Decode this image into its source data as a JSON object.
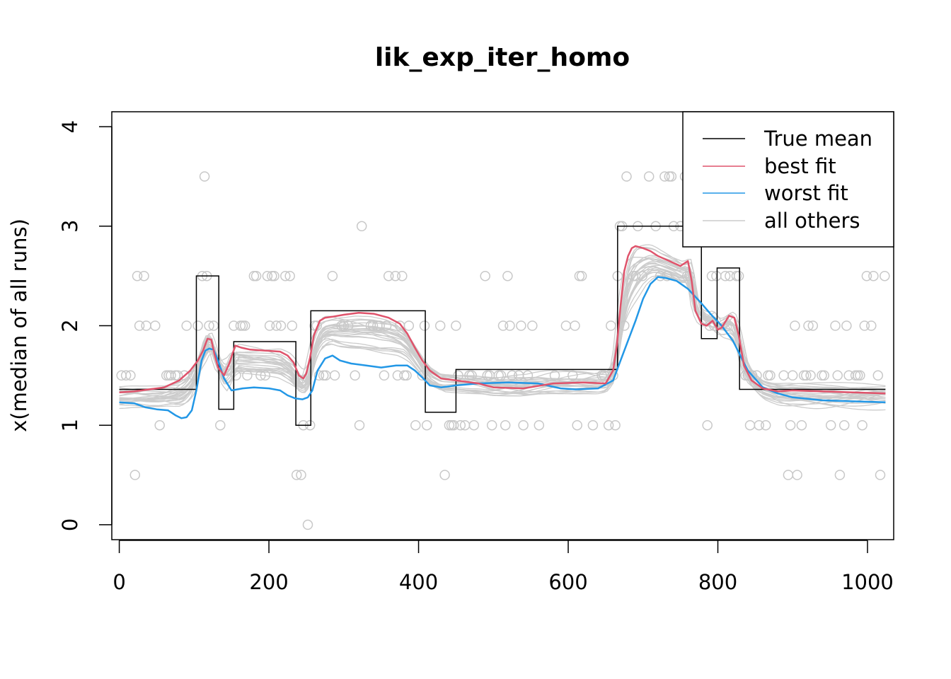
{
  "chart_data": {
    "type": "line",
    "title": "lik_exp_iter_homo",
    "xlabel": "",
    "ylabel": "x(median of all runs)",
    "xlim": [
      -10,
      1035
    ],
    "ylim": [
      -0.15,
      4.15
    ],
    "xticks": [
      0,
      200,
      400,
      600,
      800,
      1000
    ],
    "yticks": [
      0,
      1,
      2,
      3,
      4
    ],
    "grid": false,
    "legend_position": "top-right",
    "colors": {
      "true_mean": "#000000",
      "best_fit": "#DF536B",
      "worst_fit": "#2297E6",
      "others": "#CCCCCC",
      "points": "#C8C8C8"
    },
    "legend": [
      "True mean",
      "best fit",
      "worst fit",
      "all others"
    ],
    "true_mean_steps": [
      [
        0,
        1.36
      ],
      [
        103,
        2.5
      ],
      [
        133,
        1.16
      ],
      [
        153,
        1.84
      ],
      [
        236,
        1.0
      ],
      [
        256,
        2.15
      ],
      [
        409,
        1.13
      ],
      [
        450,
        1.56
      ],
      [
        666,
        3.0
      ],
      [
        778,
        1.87
      ],
      [
        799,
        2.58
      ],
      [
        829,
        1.36
      ],
      [
        1024,
        1.36
      ]
    ],
    "series": [
      {
        "name": "best fit",
        "x": [
          0,
          20,
          40,
          60,
          80,
          95,
          105,
          112,
          118,
          123,
          127,
          132,
          140,
          147,
          155,
          163,
          175,
          195,
          215,
          225,
          233,
          240,
          246,
          250,
          255,
          260,
          268,
          275,
          285,
          300,
          320,
          340,
          360,
          375,
          385,
          395,
          405,
          415,
          430,
          450,
          480,
          500,
          540,
          580,
          620,
          650,
          660,
          665,
          670,
          675,
          680,
          685,
          690,
          700,
          710,
          720,
          735,
          750,
          760,
          765,
          770,
          778,
          785,
          793,
          800,
          805,
          815,
          822,
          828,
          835,
          845,
          860,
          880,
          900,
          940,
          980,
          1024
        ],
        "values": [
          1.33,
          1.34,
          1.36,
          1.38,
          1.45,
          1.55,
          1.65,
          1.75,
          1.87,
          1.86,
          1.72,
          1.58,
          1.5,
          1.62,
          1.8,
          1.78,
          1.76,
          1.75,
          1.74,
          1.7,
          1.63,
          1.5,
          1.47,
          1.52,
          1.68,
          1.9,
          2.05,
          2.08,
          2.09,
          2.11,
          2.13,
          2.12,
          2.08,
          2.02,
          1.92,
          1.78,
          1.65,
          1.55,
          1.47,
          1.45,
          1.42,
          1.38,
          1.37,
          1.42,
          1.43,
          1.42,
          1.55,
          1.8,
          2.2,
          2.55,
          2.7,
          2.78,
          2.8,
          2.78,
          2.75,
          2.7,
          2.65,
          2.6,
          2.65,
          2.45,
          2.15,
          2.02,
          2.0,
          2.05,
          1.96,
          1.98,
          2.1,
          2.08,
          1.9,
          1.6,
          1.45,
          1.37,
          1.34,
          1.35,
          1.34,
          1.33,
          1.32
        ]
      },
      {
        "name": "worst fit",
        "x": [
          0,
          20,
          35,
          50,
          65,
          75,
          83,
          90,
          97,
          103,
          110,
          115,
          120,
          126,
          132,
          140,
          150,
          165,
          180,
          200,
          215,
          225,
          235,
          245,
          252,
          258,
          265,
          275,
          285,
          295,
          310,
          330,
          350,
          370,
          385,
          395,
          405,
          415,
          430,
          450,
          480,
          520,
          560,
          590,
          610,
          640,
          660,
          670,
          680,
          690,
          700,
          710,
          720,
          730,
          745,
          760,
          775,
          790,
          805,
          820,
          840,
          860,
          880,
          900,
          940,
          980,
          1024
        ],
        "values": [
          1.23,
          1.22,
          1.18,
          1.16,
          1.15,
          1.1,
          1.07,
          1.08,
          1.15,
          1.35,
          1.65,
          1.75,
          1.77,
          1.76,
          1.65,
          1.47,
          1.35,
          1.37,
          1.38,
          1.37,
          1.35,
          1.3,
          1.27,
          1.26,
          1.28,
          1.35,
          1.55,
          1.67,
          1.7,
          1.65,
          1.62,
          1.6,
          1.58,
          1.6,
          1.6,
          1.55,
          1.48,
          1.4,
          1.38,
          1.4,
          1.42,
          1.43,
          1.42,
          1.37,
          1.36,
          1.37,
          1.45,
          1.65,
          1.85,
          2.05,
          2.27,
          2.42,
          2.49,
          2.48,
          2.45,
          2.37,
          2.25,
          2.12,
          2.0,
          1.85,
          1.55,
          1.38,
          1.32,
          1.28,
          1.25,
          1.24,
          1.23
        ]
      }
    ]
  }
}
